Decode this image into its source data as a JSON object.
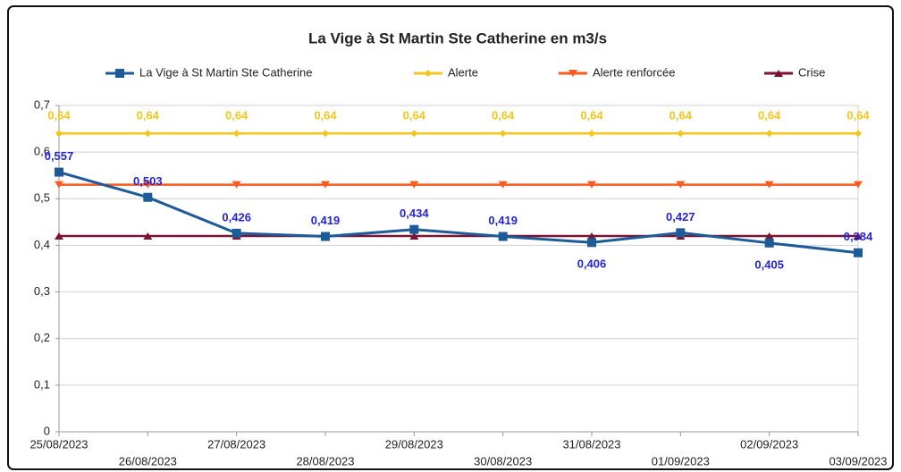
{
  "chart_data": {
    "type": "line",
    "title": "La Vige à St Martin Ste Catherine en m3/s",
    "categories": [
      "25/08/2023",
      "26/08/2023",
      "27/08/2023",
      "28/08/2023",
      "29/08/2023",
      "30/08/2023",
      "31/08/2023",
      "01/09/2023",
      "02/09/2023",
      "03/09/2023"
    ],
    "series": [
      {
        "name": "La Vige à St Martin Ste Catherine",
        "color": "#1c5a98",
        "marker": "square",
        "values": [
          0.557,
          0.503,
          0.426,
          0.419,
          0.434,
          0.419,
          0.406,
          0.427,
          0.405,
          0.384
        ],
        "value_labels": [
          "0,557",
          "0,503",
          "0,426",
          "0,419",
          "0,434",
          "0,419",
          "0,406",
          "0,427",
          "0,405",
          "0,384"
        ],
        "label_color": "#2323d8"
      },
      {
        "name": "Alerte",
        "color": "#f4c51c",
        "marker": "diamond",
        "values": [
          0.64,
          0.64,
          0.64,
          0.64,
          0.64,
          0.64,
          0.64,
          0.64,
          0.64,
          0.64
        ],
        "value_labels": [
          "0,64",
          "0,64",
          "0,64",
          "0,64",
          "0,64",
          "0,64",
          "0,64",
          "0,64",
          "0,64",
          "0,64"
        ],
        "label_color": "#f4c51c"
      },
      {
        "name": "Alerte renforcée",
        "color": "#fb5a1e",
        "marker": "triangle-down",
        "values": [
          0.53,
          0.53,
          0.53,
          0.53,
          0.53,
          0.53,
          0.53,
          0.53,
          0.53,
          0.53
        ]
      },
      {
        "name": "Crise",
        "color": "#7a1232",
        "marker": "triangle-up",
        "values": [
          0.42,
          0.42,
          0.42,
          0.42,
          0.42,
          0.42,
          0.42,
          0.42,
          0.42,
          0.42
        ]
      }
    ],
    "ylim": [
      0,
      0.7
    ],
    "yticks": [
      0,
      {
        "value": 0.1,
        "label": "0,1"
      },
      {
        "value": 0.2,
        "label": "0,2"
      },
      {
        "value": 0.3,
        "label": "0,3"
      },
      {
        "value": 0.4,
        "label": "0,4"
      },
      {
        "value": 0.5,
        "label": "0,5"
      },
      {
        "value": 0.6,
        "label": "0,6"
      },
      {
        "value": 0.7,
        "label": "0,7"
      }
    ],
    "grid": true,
    "legend": "top"
  }
}
